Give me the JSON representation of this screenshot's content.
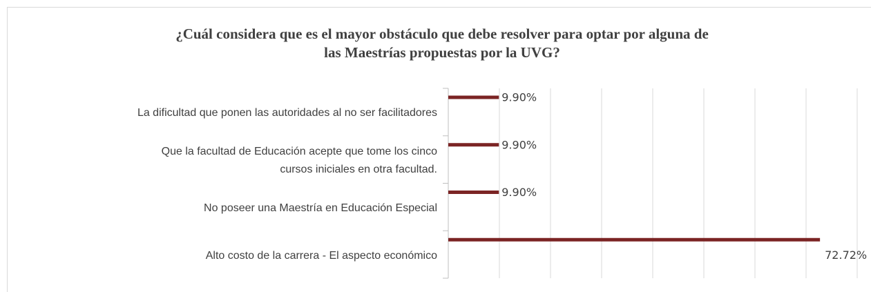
{
  "chart_data": {
    "type": "bar",
    "orientation": "horizontal",
    "title": "¿Cuál considera que es el mayor obstáculo que debe resolver para optar por alguna de\nlas Maestrías propuestas por la UVG?",
    "categories": [
      "La dificultad que ponen las autoridades al no ser facilitadores",
      "Que la facultad de Educación acepte que tome los cinco\ncursos iniciales en otra facultad.",
      "No poseer una Maestría en Educación Especial",
      "Alto costo de la carrera  - El aspecto económico"
    ],
    "values": [
      9.9,
      9.9,
      9.9,
      72.72
    ],
    "value_labels": [
      "9.90%",
      "9.90%",
      "9.90%",
      "72.72%"
    ],
    "color": "#7b2424",
    "xlim": [
      0,
      80
    ],
    "xticks": [
      0,
      10,
      20,
      30,
      40,
      50,
      60,
      70,
      80
    ],
    "grid": true
  }
}
